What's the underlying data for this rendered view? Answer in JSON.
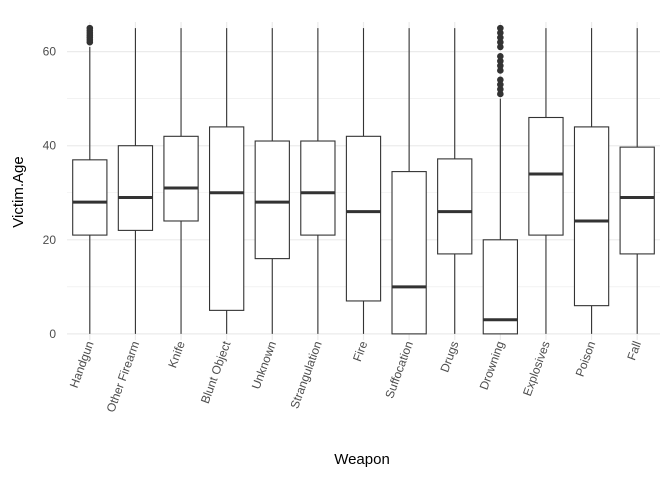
{
  "chart_data": {
    "type": "boxplot",
    "xlabel": "Weapon",
    "ylabel": "Victim.Age",
    "ylim": [
      -1.3,
      66.3
    ],
    "yticks": [
      0,
      20,
      40,
      60
    ],
    "grid": true,
    "categories": [
      "Handgun",
      "Other Firearm",
      "Knife",
      "Blunt Object",
      "Unknown",
      "Strangulation",
      "Fire",
      "Suffocation",
      "Drugs",
      "Drowning",
      "Explosives",
      "Poison",
      "Fall"
    ],
    "boxes": [
      {
        "min": 0,
        "q1": 21,
        "median": 28,
        "q3": 37,
        "max": 61,
        "outliers": [
          62,
          62.5,
          63,
          63.5,
          64,
          64.5,
          65
        ]
      },
      {
        "min": 0,
        "q1": 22,
        "median": 29,
        "q3": 40,
        "max": 65,
        "outliers": []
      },
      {
        "min": 0,
        "q1": 24,
        "median": 31,
        "q3": 42,
        "max": 65,
        "outliers": []
      },
      {
        "min": 0,
        "q1": 5,
        "median": 30,
        "q3": 44,
        "max": 65,
        "outliers": []
      },
      {
        "min": 0,
        "q1": 16,
        "median": 28,
        "q3": 41,
        "max": 65,
        "outliers": []
      },
      {
        "min": 0,
        "q1": 21,
        "median": 30,
        "q3": 41,
        "max": 65,
        "outliers": []
      },
      {
        "min": 0,
        "q1": 7,
        "median": 26,
        "q3": 42,
        "max": 65,
        "outliers": []
      },
      {
        "min": 0,
        "q1": 0,
        "median": 10,
        "q3": 34.5,
        "max": 65,
        "outliers": []
      },
      {
        "min": 0,
        "q1": 17,
        "median": 26,
        "q3": 37.2,
        "max": 65,
        "outliers": []
      },
      {
        "min": 0,
        "q1": 0,
        "median": 3,
        "q3": 20,
        "max": 50,
        "outliers": [
          51,
          52,
          53,
          54,
          56,
          57,
          58,
          59,
          61,
          62,
          63,
          64,
          65
        ]
      },
      {
        "min": 0,
        "q1": 21,
        "median": 34,
        "q3": 46,
        "max": 65,
        "outliers": []
      },
      {
        "min": 0,
        "q1": 6,
        "median": 24,
        "q3": 44,
        "max": 65,
        "outliers": []
      },
      {
        "min": 0,
        "q1": 17,
        "median": 29,
        "q3": 39.7,
        "max": 65,
        "outliers": []
      }
    ],
    "colors": {
      "box_line": "#333333",
      "median": "#333333",
      "grid": "#ebebeb",
      "outlier": "#333333"
    }
  }
}
